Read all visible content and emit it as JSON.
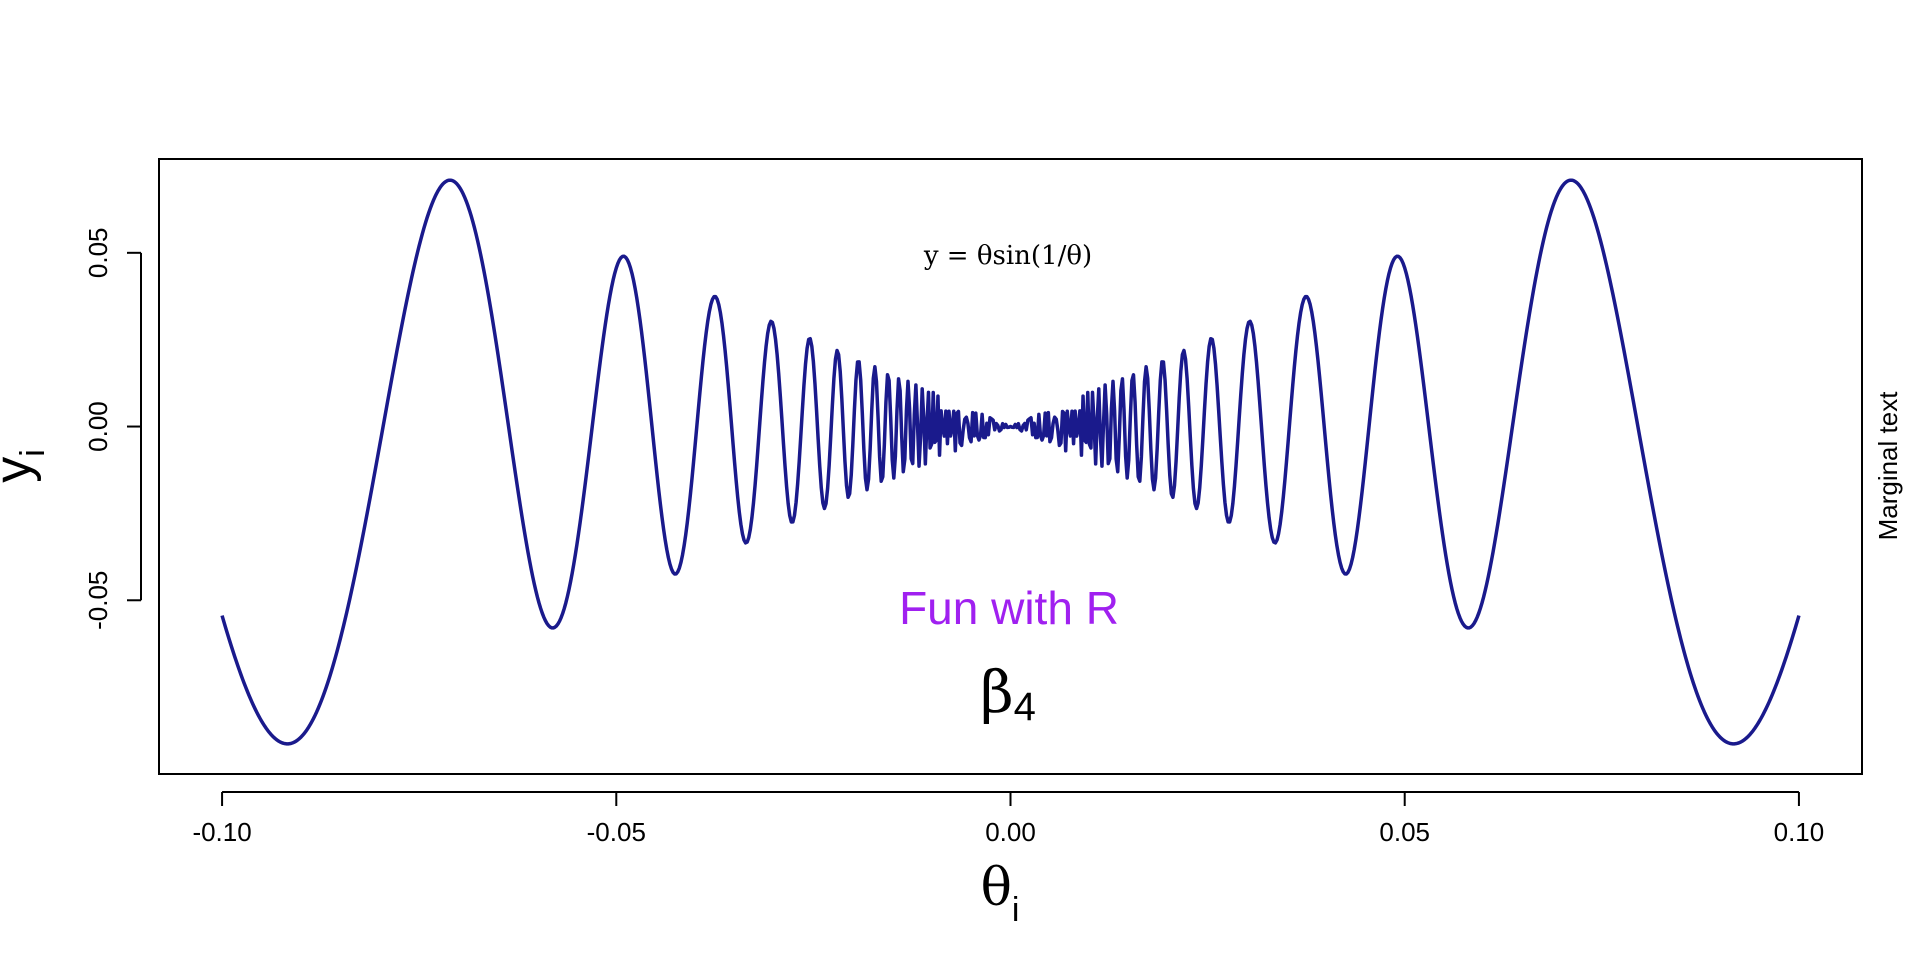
{
  "chart_data": {
    "type": "line",
    "function": "y = θ·sin(1/θ)",
    "x_range": [
      -0.1,
      0.1
    ],
    "x_ticks": [
      -0.1,
      -0.05,
      0.0,
      0.05,
      0.1
    ],
    "x_tick_labels": [
      "-0.10",
      "-0.05",
      "0.00",
      "0.05",
      "0.10"
    ],
    "y_ticks": [
      -0.05,
      0.0,
      0.05
    ],
    "y_tick_labels": [
      "-0.05",
      "0.00",
      "0.05"
    ],
    "xlim": [
      -0.108,
      0.108
    ],
    "ylim": [
      -0.1,
      0.077
    ],
    "xlabel": {
      "main": "θ",
      "sub": "i"
    },
    "ylabel": {
      "main": "y",
      "sub": "i"
    },
    "series": [
      {
        "color": "#1a1a8c"
      }
    ],
    "annotations": {
      "formula": "y = θsin(1/θ)",
      "fun_text": "Fun with R",
      "fun_color": "#a020f0",
      "beta": {
        "main": "β",
        "sub": "4"
      },
      "margin_text": "Marginal text"
    }
  }
}
